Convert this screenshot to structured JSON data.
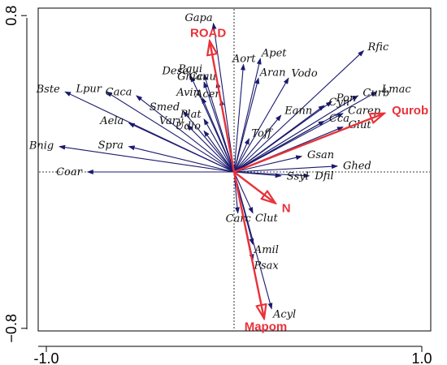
{
  "chart_data": {
    "type": "scatter",
    "subtype": "biplot",
    "xlim": [
      -1.2,
      1.2
    ],
    "ylim": [
      -0.85,
      0.85
    ],
    "x_ticks": [
      {
        "value": -1.0,
        "label": "-1.0"
      },
      {
        "value": 1.0,
        "label": "1.0"
      }
    ],
    "y_ticks": [
      {
        "value": 0.8,
        "label": "0.8"
      },
      {
        "value": -0.8,
        "label": "−0.8"
      }
    ],
    "origin_lines": "dotted",
    "colors": {
      "species": "#1a1a6e",
      "environment": "#e8323a",
      "frame": "#000000"
    },
    "species_arrows": [
      {
        "name": "Gapa",
        "x": -0.11,
        "y": 0.76
      },
      {
        "name": "Aort",
        "x": 0.05,
        "y": 0.55
      },
      {
        "name": "Apet",
        "x": 0.14,
        "y": 0.58
      },
      {
        "name": "Aran",
        "x": 0.13,
        "y": 0.48
      },
      {
        "name": "Vodo",
        "x": 0.29,
        "y": 0.48
      },
      {
        "name": "Rfic",
        "x": 0.69,
        "y": 0.62
      },
      {
        "name": "Lmac",
        "x": 0.76,
        "y": 0.41
      },
      {
        "name": "Curb",
        "x": 0.66,
        "y": 0.39
      },
      {
        "name": "Cyn",
        "x": 0.48,
        "y": 0.34
      },
      {
        "name": "Pon",
        "x": 0.52,
        "y": 0.36
      },
      {
        "name": "Carep",
        "x": 0.58,
        "y": 0.3
      },
      {
        "name": "Cca",
        "x": 0.48,
        "y": 0.26
      },
      {
        "name": "Glut",
        "x": 0.58,
        "y": 0.23
      },
      {
        "name": "Eann",
        "x": 0.25,
        "y": 0.29
      },
      {
        "name": "Toff",
        "x": 0.08,
        "y": 0.17
      },
      {
        "name": "Gsan",
        "x": 0.36,
        "y": 0.08
      },
      {
        "name": "Ghed",
        "x": 0.55,
        "y": 0.03
      },
      {
        "name": "Ssyl",
        "x": 0.25,
        "y": -0.02
      },
      {
        "name": "Dfil",
        "x": 0.4,
        "y": -0.02
      },
      {
        "name": "Carc",
        "x": 0.02,
        "y": -0.21
      },
      {
        "name": "Clut",
        "x": 0.1,
        "y": -0.21
      },
      {
        "name": "Amil",
        "x": 0.1,
        "y": -0.37
      },
      {
        "name": "Psax",
        "x": 0.1,
        "y": -0.45
      },
      {
        "name": "Acyl",
        "x": 0.2,
        "y": -0.7
      },
      {
        "name": "Bste",
        "x": -0.9,
        "y": 0.41
      },
      {
        "name": "Lpur",
        "x": -0.68,
        "y": 0.41
      },
      {
        "name": "Caca",
        "x": -0.52,
        "y": 0.39
      },
      {
        "name": "Aela",
        "x": -0.56,
        "y": 0.25
      },
      {
        "name": "Spra",
        "x": -0.56,
        "y": 0.13
      },
      {
        "name": "Bnig",
        "x": -0.93,
        "y": 0.13
      },
      {
        "name": "Coar",
        "x": -0.78,
        "y": 0.0
      },
      {
        "name": "Dese",
        "x": -0.23,
        "y": 0.49
      },
      {
        "name": "Ghia",
        "x": -0.16,
        "y": 0.46
      },
      {
        "name": "Pqui",
        "x": -0.16,
        "y": 0.5
      },
      {
        "name": "Ccau",
        "x": -0.09,
        "y": 0.46
      },
      {
        "name": "Avin",
        "x": -0.17,
        "y": 0.38
      },
      {
        "name": "Acer",
        "x": -0.07,
        "y": 0.37
      },
      {
        "name": "Smed",
        "x": -0.27,
        "y": 0.31
      },
      {
        "name": "Vary",
        "x": -0.25,
        "y": 0.24
      },
      {
        "name": "Plat",
        "x": -0.16,
        "y": 0.27
      },
      {
        "name": "Udio",
        "x": -0.16,
        "y": 0.21
      }
    ],
    "env_arrows": [
      {
        "name": "ROAD",
        "x": -0.13,
        "y": 0.67
      },
      {
        "name": "Qurob",
        "x": 0.8,
        "y": 0.3
      },
      {
        "name": "N",
        "x": 0.22,
        "y": -0.16
      },
      {
        "name": "Mapom",
        "x": 0.16,
        "y": -0.75
      }
    ]
  }
}
